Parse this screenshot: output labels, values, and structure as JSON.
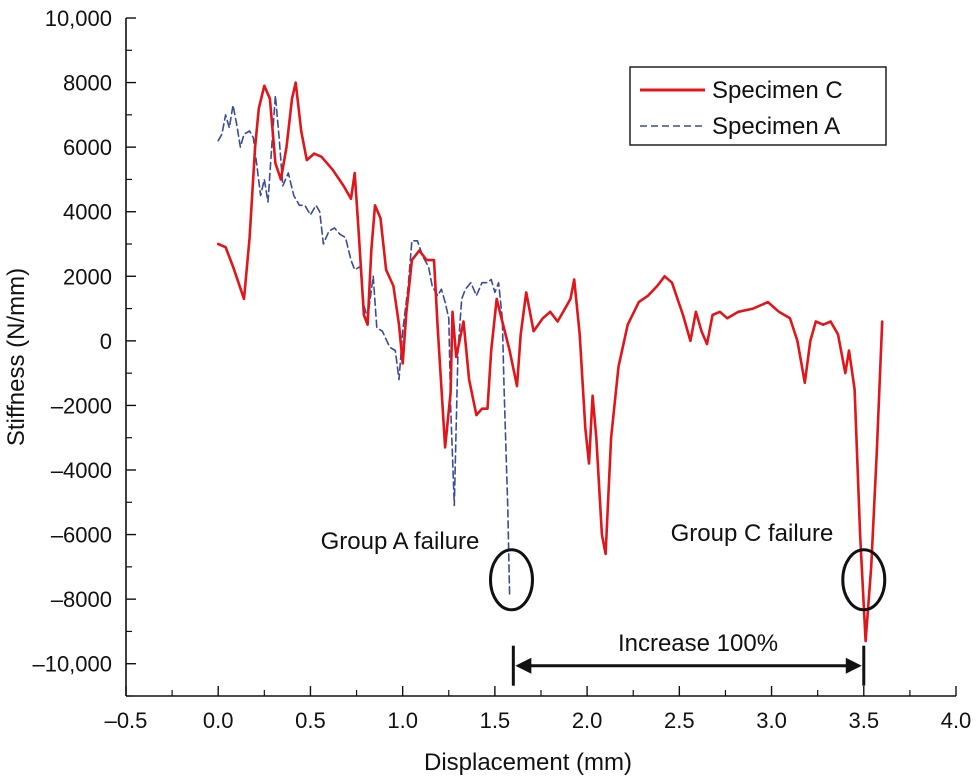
{
  "chart_data": {
    "type": "line",
    "title": "",
    "xlabel": "Displacement (mm)",
    "ylabel": "Stiffness (N/mm)",
    "xlim": [
      -0.5,
      4.0
    ],
    "ylim": [
      -11000,
      10000
    ],
    "x_ticks": [
      -0.5,
      0.0,
      0.5,
      1.0,
      1.5,
      2.0,
      2.5,
      3.0,
      3.5,
      4.0
    ],
    "x_tick_labels": [
      "–0.5",
      "0.0",
      "0.5",
      "1.0",
      "1.5",
      "2.0",
      "2.5",
      "3.0",
      "3.5",
      "4.0"
    ],
    "y_ticks": [
      10000,
      8000,
      6000,
      4000,
      2000,
      0,
      -2000,
      -4000,
      -6000,
      -8000,
      -10000
    ],
    "y_tick_labels": [
      "10,000",
      "8000",
      "6000",
      "4000",
      "2000",
      "0",
      "–2000",
      "–4000",
      "–6000",
      "–8000",
      "–10,000"
    ],
    "grid": false,
    "legend_position": "top-right",
    "series": [
      {
        "name": "Specimen C",
        "color": "#e0161b",
        "style": "solid",
        "points": [
          [
            0.0,
            3000
          ],
          [
            0.04,
            2900
          ],
          [
            0.08,
            2300
          ],
          [
            0.11,
            1800
          ],
          [
            0.14,
            1300
          ],
          [
            0.17,
            3200
          ],
          [
            0.2,
            6000
          ],
          [
            0.22,
            7200
          ],
          [
            0.25,
            7900
          ],
          [
            0.28,
            7500
          ],
          [
            0.31,
            5500
          ],
          [
            0.34,
            5000
          ],
          [
            0.37,
            6000
          ],
          [
            0.4,
            7500
          ],
          [
            0.42,
            8000
          ],
          [
            0.45,
            6500
          ],
          [
            0.48,
            5600
          ],
          [
            0.52,
            5800
          ],
          [
            0.56,
            5700
          ],
          [
            0.62,
            5300
          ],
          [
            0.68,
            4800
          ],
          [
            0.72,
            4400
          ],
          [
            0.74,
            5200
          ],
          [
            0.76,
            3500
          ],
          [
            0.79,
            800
          ],
          [
            0.81,
            500
          ],
          [
            0.83,
            2800
          ],
          [
            0.85,
            4200
          ],
          [
            0.88,
            3800
          ],
          [
            0.91,
            2200
          ],
          [
            0.95,
            1700
          ],
          [
            0.98,
            500
          ],
          [
            1.0,
            -700
          ],
          [
            1.02,
            900
          ],
          [
            1.05,
            2500
          ],
          [
            1.09,
            2800
          ],
          [
            1.13,
            2500
          ],
          [
            1.17,
            2500
          ],
          [
            1.19,
            400
          ],
          [
            1.23,
            -3300
          ],
          [
            1.26,
            -1600
          ],
          [
            1.27,
            900
          ],
          [
            1.29,
            -500
          ],
          [
            1.33,
            600
          ],
          [
            1.36,
            -1200
          ],
          [
            1.4,
            -2300
          ],
          [
            1.43,
            -2100
          ],
          [
            1.46,
            -2100
          ],
          [
            1.48,
            -300
          ],
          [
            1.51,
            1300
          ],
          [
            1.54,
            600
          ],
          [
            1.58,
            -300
          ],
          [
            1.62,
            -1400
          ],
          [
            1.64,
            200
          ],
          [
            1.67,
            1500
          ],
          [
            1.71,
            300
          ],
          [
            1.76,
            700
          ],
          [
            1.8,
            900
          ],
          [
            1.84,
            600
          ],
          [
            1.88,
            1000
          ],
          [
            1.91,
            1300
          ],
          [
            1.93,
            1900
          ],
          [
            1.96,
            200
          ],
          [
            1.99,
            -2700
          ],
          [
            2.01,
            -3800
          ],
          [
            2.03,
            -1700
          ],
          [
            2.05,
            -3000
          ],
          [
            2.08,
            -6000
          ],
          [
            2.1,
            -6600
          ],
          [
            2.13,
            -3000
          ],
          [
            2.17,
            -800
          ],
          [
            2.22,
            500
          ],
          [
            2.28,
            1200
          ],
          [
            2.33,
            1400
          ],
          [
            2.38,
            1700
          ],
          [
            2.42,
            2000
          ],
          [
            2.46,
            1800
          ],
          [
            2.49,
            1300
          ],
          [
            2.52,
            800
          ],
          [
            2.56,
            0
          ],
          [
            2.59,
            900
          ],
          [
            2.62,
            300
          ],
          [
            2.65,
            -100
          ],
          [
            2.68,
            800
          ],
          [
            2.72,
            900
          ],
          [
            2.76,
            700
          ],
          [
            2.82,
            900
          ],
          [
            2.9,
            1000
          ],
          [
            2.98,
            1200
          ],
          [
            3.04,
            900
          ],
          [
            3.1,
            700
          ],
          [
            3.14,
            0
          ],
          [
            3.18,
            -1300
          ],
          [
            3.21,
            0
          ],
          [
            3.24,
            600
          ],
          [
            3.28,
            500
          ],
          [
            3.32,
            600
          ],
          [
            3.36,
            200
          ],
          [
            3.4,
            -1000
          ],
          [
            3.42,
            -300
          ],
          [
            3.45,
            -1500
          ],
          [
            3.48,
            -6000
          ],
          [
            3.51,
            -9300
          ],
          [
            3.54,
            -7000
          ],
          [
            3.57,
            -3500
          ],
          [
            3.6,
            600
          ]
        ]
      },
      {
        "name": "Specimen A",
        "color": "#3a4c99",
        "style": "dashed",
        "points": [
          [
            0.0,
            6200
          ],
          [
            0.02,
            6400
          ],
          [
            0.04,
            7000
          ],
          [
            0.06,
            6600
          ],
          [
            0.08,
            7300
          ],
          [
            0.1,
            6700
          ],
          [
            0.12,
            6000
          ],
          [
            0.14,
            6400
          ],
          [
            0.17,
            6500
          ],
          [
            0.19,
            6300
          ],
          [
            0.21,
            5400
          ],
          [
            0.23,
            4500
          ],
          [
            0.25,
            5000
          ],
          [
            0.27,
            4300
          ],
          [
            0.29,
            6000
          ],
          [
            0.31,
            7600
          ],
          [
            0.33,
            6300
          ],
          [
            0.35,
            4800
          ],
          [
            0.38,
            5200
          ],
          [
            0.41,
            4500
          ],
          [
            0.44,
            4200
          ],
          [
            0.47,
            4200
          ],
          [
            0.5,
            3900
          ],
          [
            0.53,
            4200
          ],
          [
            0.55,
            4000
          ],
          [
            0.57,
            3000
          ],
          [
            0.6,
            3400
          ],
          [
            0.63,
            3500
          ],
          [
            0.66,
            3300
          ],
          [
            0.69,
            3200
          ],
          [
            0.72,
            2500
          ],
          [
            0.74,
            2200
          ],
          [
            0.77,
            2300
          ],
          [
            0.79,
            1100
          ],
          [
            0.81,
            700
          ],
          [
            0.84,
            2000
          ],
          [
            0.86,
            400
          ],
          [
            0.89,
            300
          ],
          [
            0.93,
            -200
          ],
          [
            0.96,
            -300
          ],
          [
            0.98,
            -1200
          ],
          [
            1.0,
            300
          ],
          [
            1.03,
            1700
          ],
          [
            1.05,
            3100
          ],
          [
            1.08,
            3100
          ],
          [
            1.11,
            2600
          ],
          [
            1.14,
            2300
          ],
          [
            1.16,
            1700
          ],
          [
            1.19,
            1400
          ],
          [
            1.21,
            1600
          ],
          [
            1.23,
            1200
          ],
          [
            1.25,
            700
          ],
          [
            1.26,
            -2000
          ],
          [
            1.28,
            -5100
          ],
          [
            1.3,
            -300
          ],
          [
            1.32,
            1300
          ],
          [
            1.34,
            1600
          ],
          [
            1.37,
            1800
          ],
          [
            1.4,
            1400
          ],
          [
            1.43,
            1800
          ],
          [
            1.46,
            1800
          ],
          [
            1.48,
            1900
          ],
          [
            1.5,
            1500
          ],
          [
            1.52,
            1800
          ],
          [
            1.54,
            700
          ],
          [
            1.55,
            -1500
          ],
          [
            1.57,
            -5200
          ],
          [
            1.58,
            -7900
          ]
        ]
      }
    ],
    "annotations": {
      "group_a_label": "Group A failure",
      "group_c_label": "Group C failure",
      "increase_label": "Increase 100%",
      "group_a_point": [
        1.59,
        -7400
      ],
      "group_c_point": [
        3.5,
        -7400
      ],
      "arrow_from_x": 1.6,
      "arrow_to_x": 3.5,
      "arrow_y": -10000
    }
  }
}
